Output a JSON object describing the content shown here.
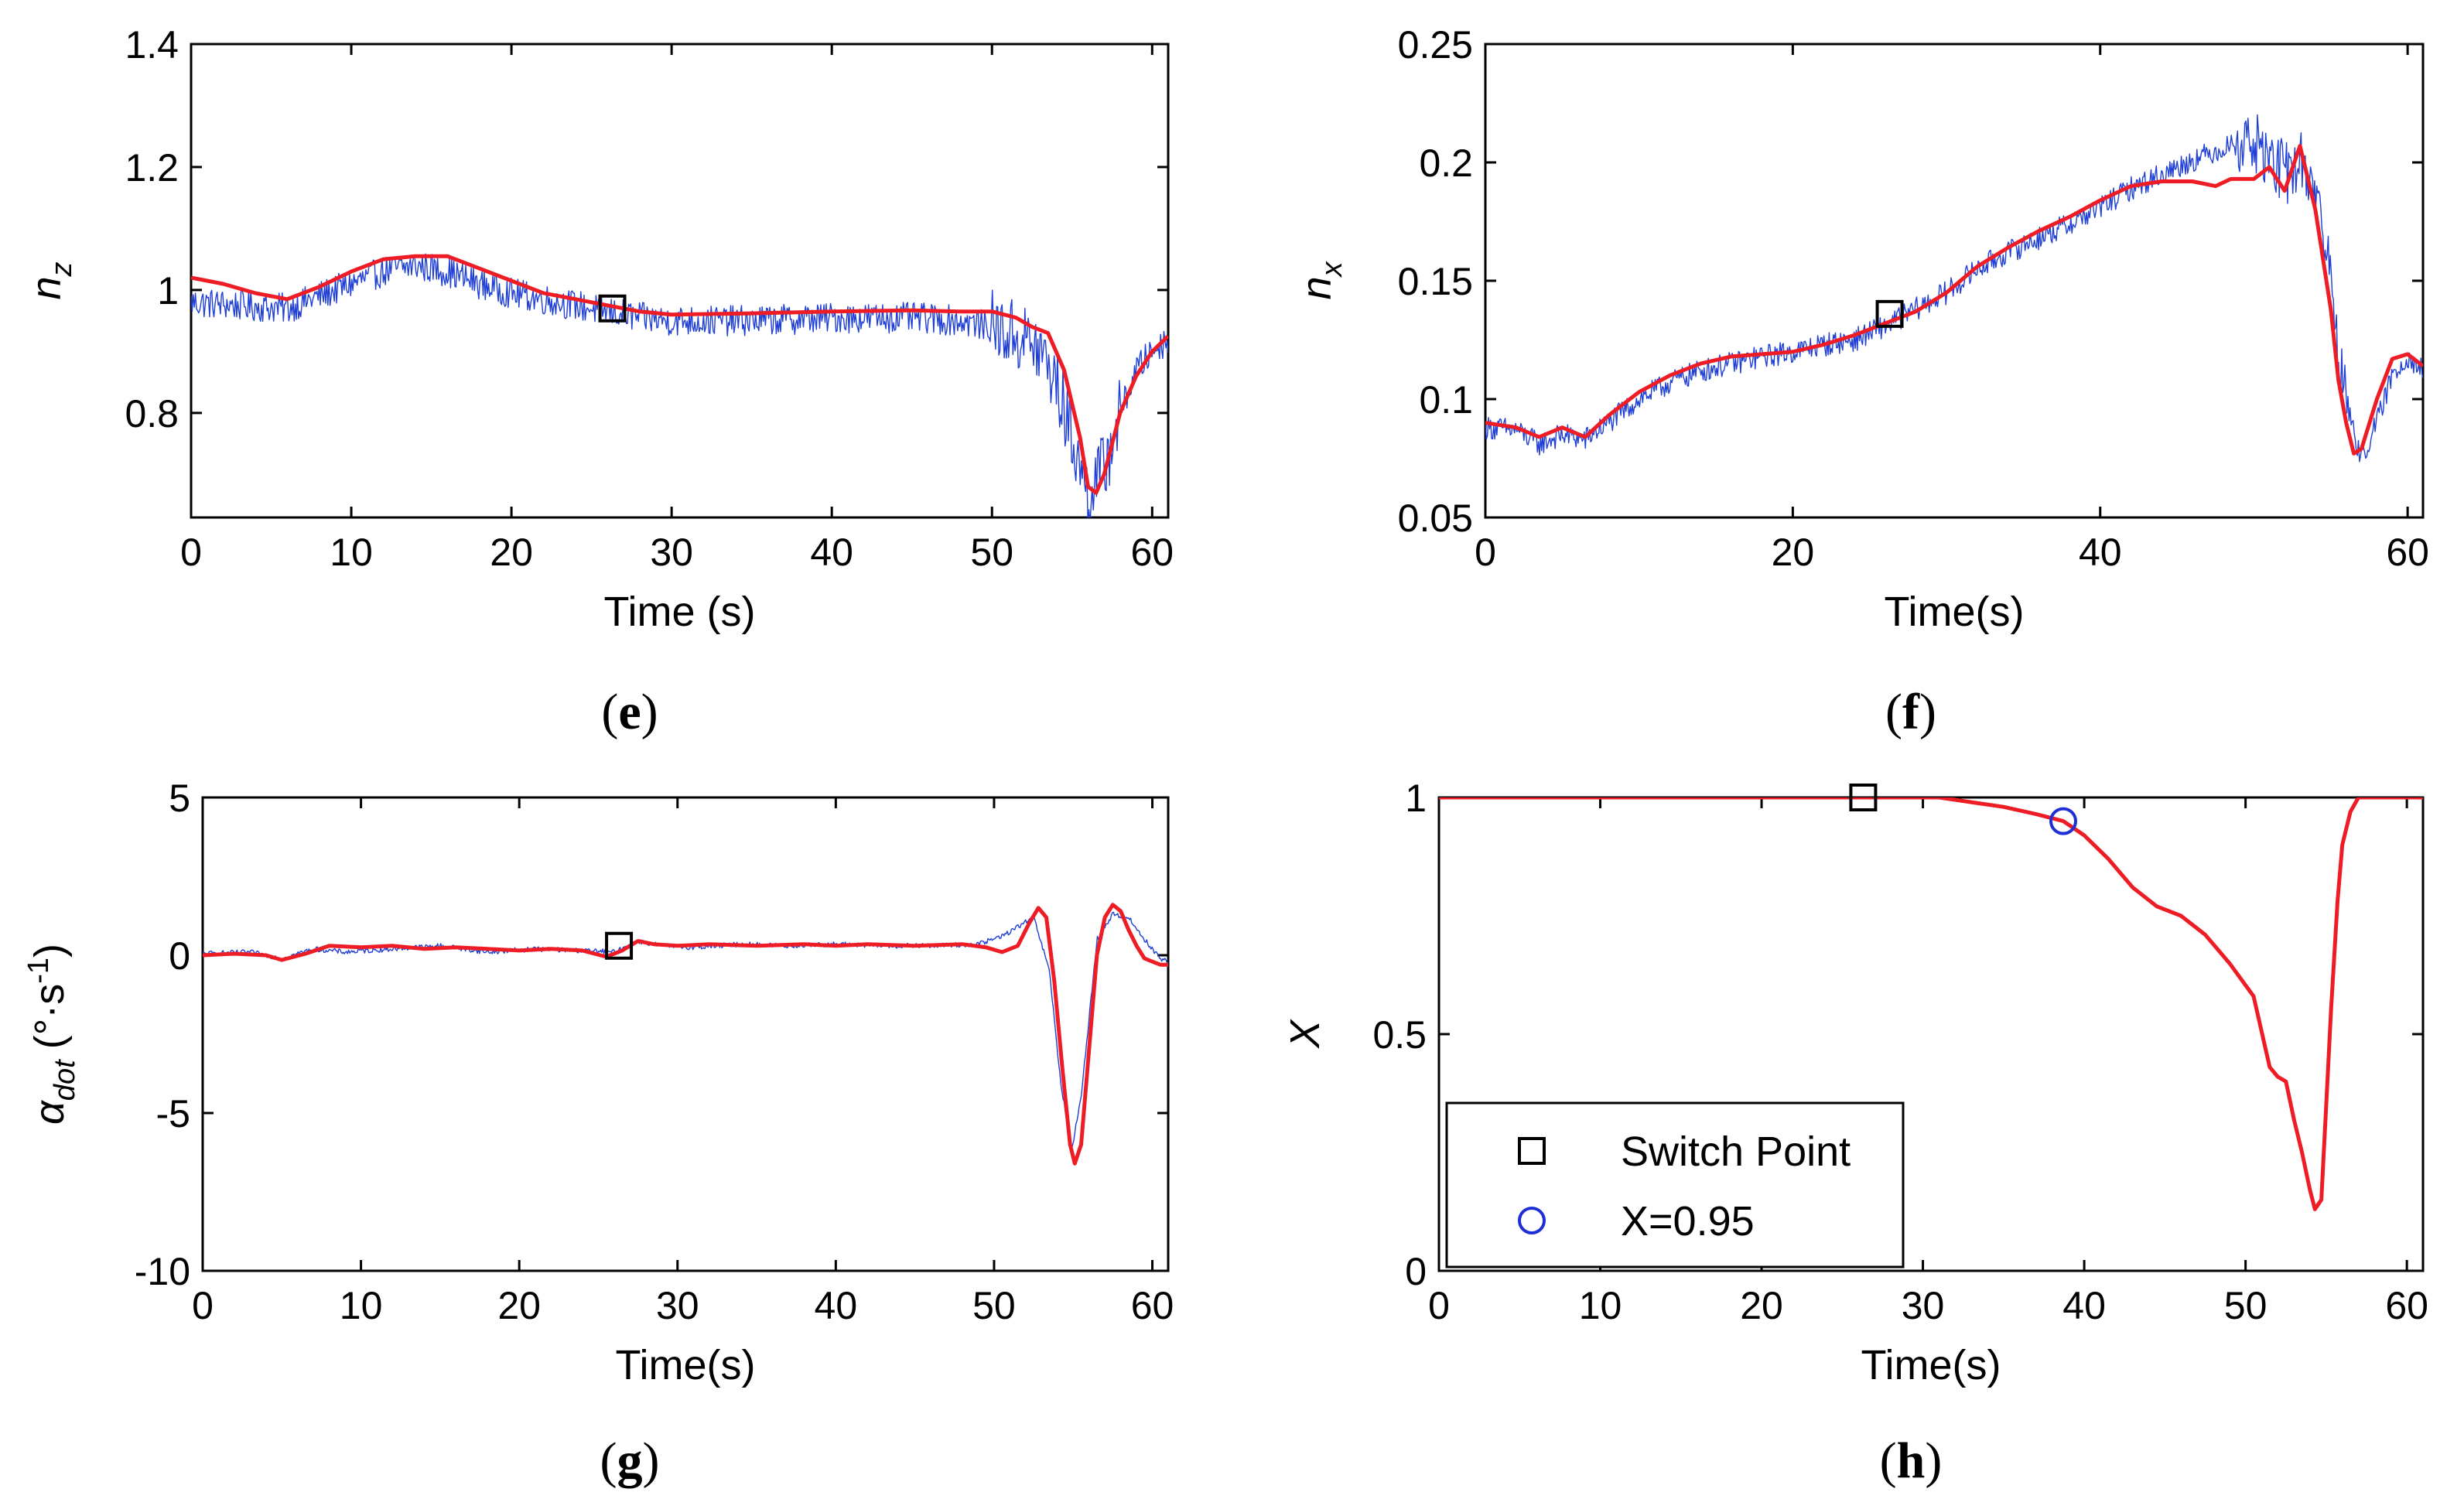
{
  "colors": {
    "measured": "#1f3fd6",
    "filtered": "#ee1c24",
    "marker": "#000000",
    "circle": "#1f2fd6",
    "axis": "#000000"
  },
  "chart_data": [
    {
      "id": "e",
      "type": "line",
      "panel_label": "e",
      "xlabel": "Time (s)",
      "ylabel": "n",
      "ylabel_sub": "z",
      "xlim": [
        0,
        61
      ],
      "ylim": [
        0.63,
        1.4
      ],
      "xticks": [
        0,
        10,
        20,
        30,
        40,
        50,
        60
      ],
      "yticks": [
        0.8,
        1,
        1.2,
        1.4
      ],
      "ytick_labels": [
        "0.8",
        "1",
        "1.2",
        "1.4"
      ],
      "series": [
        {
          "name": "measured",
          "noise": 0.025,
          "x": [
            0,
            3,
            6,
            8,
            10,
            12,
            14,
            16,
            18,
            20,
            22,
            24,
            26,
            28,
            30,
            35,
            40,
            45,
            48,
            50,
            52,
            53,
            54,
            55,
            56,
            57,
            58,
            59,
            60,
            61
          ],
          "y": [
            0.98,
            0.975,
            0.97,
            0.99,
            1.01,
            1.03,
            1.04,
            1.03,
            1.01,
            0.995,
            0.985,
            0.975,
            0.965,
            0.955,
            0.95,
            0.95,
            0.955,
            0.955,
            0.95,
            0.94,
            0.92,
            0.9,
            0.85,
            0.76,
            0.67,
            0.71,
            0.8,
            0.87,
            0.9,
            0.92
          ],
          "burst": [
            [
              50,
              58,
              0.06
            ]
          ]
        },
        {
          "name": "filtered",
          "x": [
            0,
            2,
            4,
            6,
            8,
            10,
            12,
            14,
            16,
            18,
            20,
            22,
            24,
            26,
            28,
            30,
            35,
            40,
            45,
            48,
            50,
            51.5,
            52.5,
            53.5,
            54.5,
            55.5,
            56,
            56.5,
            57,
            58,
            59,
            60,
            61
          ],
          "y": [
            1.02,
            1.01,
            0.995,
            0.985,
            1.005,
            1.03,
            1.05,
            1.055,
            1.055,
            1.035,
            1.015,
            0.995,
            0.985,
            0.975,
            0.965,
            0.96,
            0.962,
            0.965,
            0.967,
            0.965,
            0.965,
            0.955,
            0.94,
            0.93,
            0.87,
            0.76,
            0.68,
            0.67,
            0.7,
            0.8,
            0.86,
            0.9,
            0.925
          ]
        }
      ],
      "markers": [
        {
          "shape": "square",
          "x": 26.3,
          "y": 0.97
        }
      ]
    },
    {
      "id": "f",
      "type": "line",
      "panel_label": "f",
      "xlabel": "Time(s)",
      "ylabel": "n",
      "ylabel_sub": "x",
      "xlim": [
        0,
        61
      ],
      "ylim": [
        0.05,
        0.25
      ],
      "xticks": [
        0,
        20,
        40,
        60
      ],
      "yticks": [
        0.05,
        0.1,
        0.15,
        0.2,
        0.25
      ],
      "ytick_labels": [
        "0.05",
        "0.1",
        "0.15",
        "0.2",
        "0.25"
      ],
      "series": [
        {
          "name": "measured",
          "noise": 0.005,
          "x": [
            0,
            2,
            3.5,
            5,
            6.5,
            8,
            10,
            12,
            14,
            16,
            18,
            20,
            22,
            24,
            26,
            28,
            30,
            32,
            34,
            36,
            38,
            40,
            42,
            44,
            46,
            48,
            49.5,
            50.5,
            52,
            53,
            54,
            55,
            55.5,
            56,
            56.5,
            57,
            58,
            59,
            60,
            61
          ],
          "y": [
            0.088,
            0.087,
            0.081,
            0.085,
            0.083,
            0.09,
            0.1,
            0.107,
            0.112,
            0.115,
            0.118,
            0.12,
            0.123,
            0.125,
            0.131,
            0.138,
            0.145,
            0.155,
            0.162,
            0.168,
            0.174,
            0.181,
            0.189,
            0.195,
            0.201,
            0.206,
            0.21,
            0.205,
            0.195,
            0.2,
            0.19,
            0.15,
            0.12,
            0.1,
            0.085,
            0.075,
            0.09,
            0.11,
            0.118,
            0.112
          ],
          "burst": [
            [
              49,
              56,
              0.014
            ]
          ]
        },
        {
          "name": "filtered",
          "x": [
            0,
            2,
            3.5,
            5,
            6.5,
            8,
            10,
            12,
            14,
            16,
            18,
            20,
            22,
            24,
            26,
            28,
            30,
            32,
            34,
            36,
            38,
            40,
            42,
            44,
            46,
            47.5,
            48.5,
            50,
            51,
            52,
            53,
            54,
            55,
            55.5,
            56,
            56.5,
            57,
            58,
            59,
            60,
            61
          ],
          "y": [
            0.09,
            0.088,
            0.084,
            0.088,
            0.084,
            0.093,
            0.103,
            0.11,
            0.115,
            0.118,
            0.119,
            0.12,
            0.123,
            0.127,
            0.132,
            0.137,
            0.145,
            0.156,
            0.164,
            0.171,
            0.177,
            0.184,
            0.19,
            0.192,
            0.192,
            0.19,
            0.193,
            0.193,
            0.198,
            0.188,
            0.207,
            0.18,
            0.138,
            0.108,
            0.09,
            0.077,
            0.079,
            0.1,
            0.117,
            0.119,
            0.114
          ]
        }
      ],
      "markers": [
        {
          "shape": "square",
          "x": 26.3,
          "y": 0.136
        }
      ]
    },
    {
      "id": "g",
      "type": "line",
      "panel_label": "g",
      "xlabel": "Time(s)",
      "ylabel": "α",
      "ylabel_sub": "dot",
      "ylabel_units": "(°·s",
      "ylabel_sup": "-1",
      "ylabel_close": ")",
      "xlim": [
        0,
        61
      ],
      "ylim": [
        -10,
        5
      ],
      "xticks": [
        0,
        10,
        20,
        30,
        40,
        50,
        60
      ],
      "yticks": [
        -10,
        -5,
        0,
        5
      ],
      "ytick_labels": [
        "-10",
        "-5",
        "0",
        "5"
      ],
      "series": [
        {
          "name": "measured",
          "noise": 0.08,
          "x": [
            0,
            3,
            5,
            7,
            9,
            12,
            15,
            18,
            21,
            24,
            26,
            27.5,
            29,
            31,
            34,
            37,
            40,
            43,
            46,
            49,
            50.5,
            51.5,
            52.5,
            53.5,
            54.2,
            54.9,
            55.5,
            56.5,
            57.5,
            58.5,
            59.5,
            60.5,
            61
          ],
          "y": [
            0.05,
            0.1,
            -0.1,
            0.2,
            0.1,
            0.2,
            0.3,
            0.1,
            0.2,
            0.15,
            0.1,
            0.45,
            0.3,
            0.25,
            0.35,
            0.3,
            0.35,
            0.3,
            0.3,
            0.35,
            0.6,
            0.9,
            1.2,
            -0.5,
            -4,
            -6.2,
            -4.5,
            0.5,
            1.3,
            1.2,
            0.5,
            -0.1,
            -0.2
          ]
        },
        {
          "name": "filtered",
          "x": [
            0,
            2,
            4,
            5,
            6.5,
            8,
            10,
            12,
            14,
            16,
            18,
            20,
            22,
            24,
            25.5,
            26.5,
            27.5,
            28.5,
            30,
            32,
            35,
            38,
            40,
            42,
            45,
            48,
            49.5,
            50.5,
            51.5,
            52.2,
            52.8,
            53.3,
            53.8,
            54.3,
            54.8,
            55.1,
            55.5,
            56,
            56.5,
            57,
            57.5,
            58,
            58.5,
            59,
            59.5,
            60,
            60.5,
            61
          ],
          "y": [
            0,
            0.05,
            0,
            -0.15,
            0.05,
            0.3,
            0.25,
            0.3,
            0.2,
            0.25,
            0.2,
            0.15,
            0.2,
            0.15,
            -0.05,
            0.15,
            0.45,
            0.35,
            0.3,
            0.35,
            0.3,
            0.35,
            0.3,
            0.35,
            0.3,
            0.35,
            0.25,
            0.1,
            0.3,
            1.0,
            1.5,
            1.2,
            -0.8,
            -3.5,
            -6.0,
            -6.6,
            -6.0,
            -3.0,
            0.0,
            1.2,
            1.6,
            1.4,
            0.8,
            0.3,
            -0.1,
            -0.2,
            -0.3,
            -0.3
          ]
        }
      ],
      "markers": [
        {
          "shape": "square",
          "x": 26.3,
          "y": 0.3
        }
      ]
    },
    {
      "id": "h",
      "type": "line",
      "panel_label": "h",
      "xlabel": "Time(s)",
      "ylabel": "X",
      "xlim": [
        0,
        61
      ],
      "ylim": [
        0,
        1
      ],
      "xticks": [
        0,
        10,
        20,
        30,
        40,
        50,
        60
      ],
      "yticks": [
        0,
        0.5,
        1
      ],
      "ytick_labels": [
        "0",
        "0.5",
        "1"
      ],
      "series": [
        {
          "name": "filtered",
          "x": [
            0,
            31,
            33,
            35,
            37,
            38.7,
            40,
            41.5,
            43,
            44.5,
            46,
            47.5,
            49,
            50.5,
            51.5,
            52,
            52.5,
            53,
            53.5,
            54,
            54.3,
            54.7,
            55,
            55.3,
            55.7,
            56,
            56.5,
            57,
            61
          ],
          "y": [
            1,
            1,
            0.99,
            0.98,
            0.965,
            0.95,
            0.92,
            0.87,
            0.81,
            0.77,
            0.75,
            0.71,
            0.65,
            0.58,
            0.43,
            0.41,
            0.4,
            0.32,
            0.25,
            0.17,
            0.13,
            0.15,
            0.35,
            0.55,
            0.78,
            0.9,
            0.97,
            1,
            1
          ]
        }
      ],
      "markers": [
        {
          "shape": "square",
          "x": 26.3,
          "y": 1
        },
        {
          "shape": "circle",
          "x": 38.7,
          "y": 0.95
        }
      ],
      "legend": {
        "placement": "bottom-left",
        "entries": [
          {
            "shape": "square",
            "label": "Switch Point"
          },
          {
            "shape": "circle",
            "label": "X=0.95"
          }
        ]
      }
    }
  ]
}
